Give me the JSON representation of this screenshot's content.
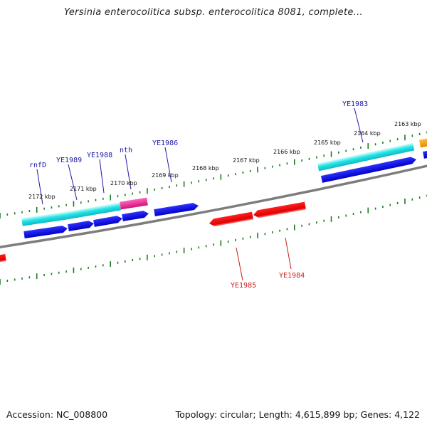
{
  "title": "Yersinia enterocolitica subsp. enterocolitica 8081, complete...",
  "footer": {
    "accession": "Accession: NC_008800",
    "summary": "Topology: circular; Length: 4,615,899 bp; Genes: 4,122"
  },
  "colors": {
    "backbone": "#7a7a7a",
    "tick": "#1e7a1e",
    "plus_strand": "#0000ff",
    "cds_cyan": "#19e6e6",
    "cds_magenta": "#e8228c",
    "minus_strand": "#ff0000",
    "cds_orange": "#f5a300",
    "plus_label": "#1a1aa8",
    "minus_label": "#cc1a1a"
  },
  "ticks": [
    "2172 kbp",
    "2171 kbp",
    "2170 kbp",
    "2169 kbp",
    "2168 kbp",
    "2167 kbp",
    "2166 kbp",
    "2165 kbp",
    "2164 kbp",
    "2163 kbp"
  ],
  "gene_labels": {
    "plus": [
      "rnfD",
      "YE1989",
      "YE1988",
      "nth",
      "YE1986",
      "YE1983"
    ],
    "minus": [
      "YE1985",
      "YE1984"
    ]
  }
}
